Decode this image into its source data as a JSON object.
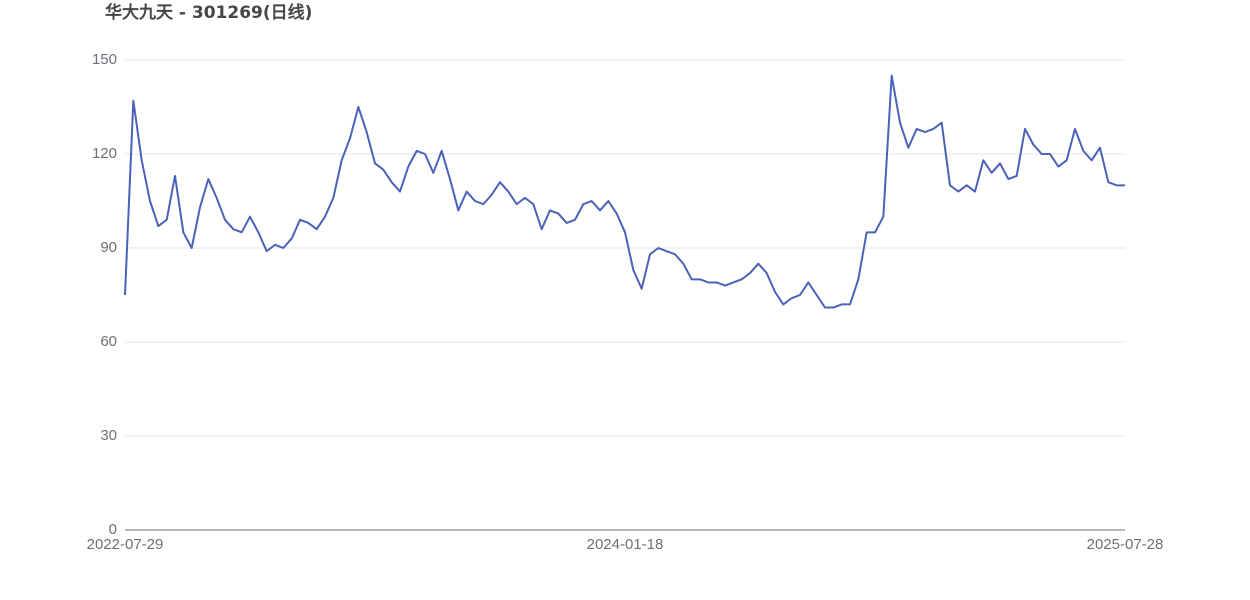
{
  "chart_data": {
    "type": "line",
    "title": "华大九天 - 301269(日线)",
    "categories": [
      "2022-07-29",
      null,
      null,
      null,
      null,
      null,
      null,
      null,
      null,
      null,
      null,
      null,
      null,
      null,
      null,
      null,
      null,
      null,
      null,
      null,
      null,
      null,
      null,
      null,
      null,
      null,
      null,
      null,
      null,
      null,
      null,
      null,
      null,
      null,
      null,
      null,
      null,
      null,
      null,
      null,
      null,
      null,
      null,
      null,
      null,
      null,
      null,
      null,
      null,
      null,
      null,
      null,
      null,
      null,
      null,
      null,
      null,
      null,
      null,
      null,
      "2024-01-18",
      null,
      null,
      null,
      null,
      null,
      null,
      null,
      null,
      null,
      null,
      null,
      null,
      null,
      null,
      null,
      null,
      null,
      null,
      null,
      null,
      null,
      null,
      null,
      null,
      null,
      null,
      null,
      null,
      null,
      null,
      null,
      null,
      null,
      null,
      null,
      null,
      null,
      null,
      null,
      null,
      null,
      null,
      null,
      null,
      null,
      null,
      null,
      null,
      null,
      null,
      null,
      null,
      null,
      null,
      null,
      null,
      null,
      null,
      null,
      "2025-07-28"
    ],
    "series": [
      {
        "name": "301269",
        "color": "#4a62b8",
        "values": [
          75,
          137,
          118,
          105,
          97,
          99,
          113,
          95,
          90,
          103,
          112,
          106,
          99,
          96,
          95,
          100,
          95,
          89,
          91,
          90,
          93,
          99,
          98,
          96,
          100,
          106,
          118,
          125,
          135,
          127,
          117,
          115,
          111,
          108,
          116,
          121,
          120,
          114,
          121,
          112,
          102,
          108,
          105,
          104,
          107,
          111,
          108,
          104,
          106,
          104,
          96,
          102,
          101,
          98,
          99,
          104,
          105,
          102,
          105,
          101,
          95,
          83,
          77,
          88,
          90,
          89,
          88,
          85,
          80,
          80,
          79,
          79,
          78,
          79,
          80,
          82,
          85,
          82,
          76,
          72,
          74,
          75,
          79,
          75,
          71,
          71,
          72,
          72,
          80,
          95,
          95,
          100,
          145,
          130,
          122,
          128,
          127,
          128,
          130,
          110,
          108,
          110,
          108,
          118,
          114,
          117,
          112,
          113,
          128,
          123,
          120,
          120,
          116,
          118,
          128,
          121,
          118,
          122,
          111,
          110,
          110
        ]
      }
    ],
    "ylim": [
      0,
      150
    ],
    "yticks": [
      0,
      30,
      60,
      90,
      120,
      150
    ],
    "grid": true
  }
}
